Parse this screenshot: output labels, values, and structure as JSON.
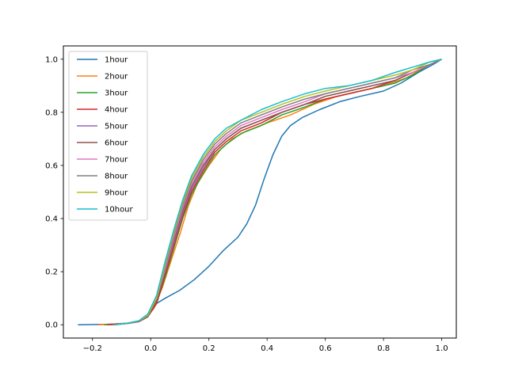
{
  "chart_data": {
    "type": "line",
    "title": "",
    "xlabel": "",
    "ylabel": "",
    "xlim": [
      -0.3,
      1.05
    ],
    "ylim": [
      -0.05,
      1.05
    ],
    "xticks": [
      -0.2,
      0.0,
      0.2,
      0.4,
      0.6,
      0.8,
      1.0
    ],
    "yticks": [
      0.0,
      0.2,
      0.4,
      0.6,
      0.8,
      1.0
    ],
    "xtick_labels": [
      "−0.2",
      "0.0",
      "0.2",
      "0.4",
      "0.6",
      "0.8",
      "1.0"
    ],
    "ytick_labels": [
      "0.0",
      "0.2",
      "0.4",
      "0.6",
      "0.8",
      "1.0"
    ],
    "grid": false,
    "legend_position": "upper-left",
    "series": [
      {
        "name": "1hour",
        "color": "#1f77b4",
        "points": [
          [
            -0.25,
            0.0
          ],
          [
            -0.15,
            0.002
          ],
          [
            -0.08,
            0.006
          ],
          [
            -0.04,
            0.015
          ],
          [
            -0.01,
            0.04
          ],
          [
            0.02,
            0.08
          ],
          [
            0.05,
            0.1
          ],
          [
            0.1,
            0.13
          ],
          [
            0.15,
            0.17
          ],
          [
            0.2,
            0.22
          ],
          [
            0.25,
            0.28
          ],
          [
            0.3,
            0.33
          ],
          [
            0.33,
            0.38
          ],
          [
            0.36,
            0.45
          ],
          [
            0.39,
            0.55
          ],
          [
            0.42,
            0.64
          ],
          [
            0.45,
            0.71
          ],
          [
            0.48,
            0.75
          ],
          [
            0.52,
            0.78
          ],
          [
            0.58,
            0.81
          ],
          [
            0.65,
            0.84
          ],
          [
            0.72,
            0.86
          ],
          [
            0.8,
            0.88
          ],
          [
            0.86,
            0.91
          ],
          [
            0.92,
            0.95
          ],
          [
            0.97,
            0.98
          ],
          [
            1.0,
            1.0
          ]
        ]
      },
      {
        "name": "2hour",
        "color": "#ff7f0e",
        "points": [
          [
            -0.18,
            0.0
          ],
          [
            -0.1,
            0.004
          ],
          [
            -0.05,
            0.01
          ],
          [
            -0.02,
            0.025
          ],
          [
            0.01,
            0.06
          ],
          [
            0.04,
            0.14
          ],
          [
            0.07,
            0.24
          ],
          [
            0.1,
            0.34
          ],
          [
            0.13,
            0.45
          ],
          [
            0.16,
            0.53
          ],
          [
            0.2,
            0.6
          ],
          [
            0.24,
            0.66
          ],
          [
            0.28,
            0.7
          ],
          [
            0.33,
            0.73
          ],
          [
            0.4,
            0.76
          ],
          [
            0.48,
            0.79
          ],
          [
            0.56,
            0.83
          ],
          [
            0.64,
            0.86
          ],
          [
            0.72,
            0.88
          ],
          [
            0.8,
            0.9
          ],
          [
            0.88,
            0.93
          ],
          [
            0.94,
            0.97
          ],
          [
            1.0,
            1.0
          ]
        ]
      },
      {
        "name": "3hour",
        "color": "#2ca02c",
        "points": [
          [
            -0.16,
            0.0
          ],
          [
            -0.08,
            0.005
          ],
          [
            -0.04,
            0.012
          ],
          [
            -0.01,
            0.03
          ],
          [
            0.02,
            0.08
          ],
          [
            0.05,
            0.18
          ],
          [
            0.08,
            0.29
          ],
          [
            0.11,
            0.4
          ],
          [
            0.14,
            0.49
          ],
          [
            0.18,
            0.57
          ],
          [
            0.22,
            0.64
          ],
          [
            0.26,
            0.68
          ],
          [
            0.31,
            0.72
          ],
          [
            0.38,
            0.75
          ],
          [
            0.45,
            0.79
          ],
          [
            0.53,
            0.82
          ],
          [
            0.6,
            0.85
          ],
          [
            0.68,
            0.87
          ],
          [
            0.76,
            0.89
          ],
          [
            0.84,
            0.91
          ],
          [
            0.9,
            0.94
          ],
          [
            0.96,
            0.98
          ],
          [
            1.0,
            1.0
          ]
        ]
      },
      {
        "name": "4hour",
        "color": "#d62728",
        "points": [
          [
            -0.15,
            0.0
          ],
          [
            -0.08,
            0.005
          ],
          [
            -0.04,
            0.012
          ],
          [
            -0.01,
            0.03
          ],
          [
            0.02,
            0.08
          ],
          [
            0.05,
            0.19
          ],
          [
            0.08,
            0.3
          ],
          [
            0.11,
            0.41
          ],
          [
            0.14,
            0.5
          ],
          [
            0.18,
            0.58
          ],
          [
            0.22,
            0.65
          ],
          [
            0.26,
            0.69
          ],
          [
            0.31,
            0.73
          ],
          [
            0.38,
            0.76
          ],
          [
            0.45,
            0.8
          ],
          [
            0.53,
            0.83
          ],
          [
            0.6,
            0.85
          ],
          [
            0.68,
            0.87
          ],
          [
            0.76,
            0.89
          ],
          [
            0.84,
            0.92
          ],
          [
            0.9,
            0.95
          ],
          [
            0.96,
            0.98
          ],
          [
            1.0,
            1.0
          ]
        ]
      },
      {
        "name": "5hour",
        "color": "#9467bd",
        "points": [
          [
            -0.14,
            0.0
          ],
          [
            -0.08,
            0.005
          ],
          [
            -0.04,
            0.013
          ],
          [
            -0.01,
            0.03
          ],
          [
            0.02,
            0.09
          ],
          [
            0.05,
            0.2
          ],
          [
            0.08,
            0.31
          ],
          [
            0.11,
            0.42
          ],
          [
            0.14,
            0.51
          ],
          [
            0.18,
            0.59
          ],
          [
            0.22,
            0.66
          ],
          [
            0.26,
            0.7
          ],
          [
            0.31,
            0.74
          ],
          [
            0.38,
            0.77
          ],
          [
            0.45,
            0.8
          ],
          [
            0.53,
            0.83
          ],
          [
            0.6,
            0.86
          ],
          [
            0.68,
            0.88
          ],
          [
            0.76,
            0.9
          ],
          [
            0.84,
            0.92
          ],
          [
            0.9,
            0.95
          ],
          [
            0.96,
            0.98
          ],
          [
            1.0,
            1.0
          ]
        ]
      },
      {
        "name": "6hour",
        "color": "#8c564b",
        "points": [
          [
            -0.14,
            0.0
          ],
          [
            -0.08,
            0.005
          ],
          [
            -0.04,
            0.013
          ],
          [
            -0.01,
            0.03
          ],
          [
            0.02,
            0.09
          ],
          [
            0.05,
            0.2
          ],
          [
            0.08,
            0.32
          ],
          [
            0.11,
            0.43
          ],
          [
            0.14,
            0.52
          ],
          [
            0.18,
            0.6
          ],
          [
            0.22,
            0.66
          ],
          [
            0.26,
            0.7
          ],
          [
            0.31,
            0.74
          ],
          [
            0.38,
            0.77
          ],
          [
            0.45,
            0.8
          ],
          [
            0.53,
            0.83
          ],
          [
            0.6,
            0.86
          ],
          [
            0.68,
            0.88
          ],
          [
            0.76,
            0.9
          ],
          [
            0.84,
            0.92
          ],
          [
            0.9,
            0.95
          ],
          [
            0.96,
            0.98
          ],
          [
            1.0,
            1.0
          ]
        ]
      },
      {
        "name": "7hour",
        "color": "#e377c2",
        "points": [
          [
            -0.13,
            0.0
          ],
          [
            -0.08,
            0.005
          ],
          [
            -0.04,
            0.014
          ],
          [
            -0.01,
            0.035
          ],
          [
            0.02,
            0.1
          ],
          [
            0.05,
            0.21
          ],
          [
            0.08,
            0.33
          ],
          [
            0.11,
            0.44
          ],
          [
            0.14,
            0.53
          ],
          [
            0.18,
            0.61
          ],
          [
            0.22,
            0.67
          ],
          [
            0.26,
            0.71
          ],
          [
            0.31,
            0.75
          ],
          [
            0.38,
            0.78
          ],
          [
            0.45,
            0.81
          ],
          [
            0.53,
            0.84
          ],
          [
            0.6,
            0.87
          ],
          [
            0.68,
            0.89
          ],
          [
            0.76,
            0.91
          ],
          [
            0.84,
            0.93
          ],
          [
            0.9,
            0.95
          ],
          [
            0.96,
            0.98
          ],
          [
            1.0,
            1.0
          ]
        ]
      },
      {
        "name": "8hour",
        "color": "#7f7f7f",
        "points": [
          [
            -0.13,
            0.0
          ],
          [
            -0.08,
            0.005
          ],
          [
            -0.04,
            0.014
          ],
          [
            -0.01,
            0.035
          ],
          [
            0.02,
            0.1
          ],
          [
            0.05,
            0.22
          ],
          [
            0.08,
            0.34
          ],
          [
            0.11,
            0.45
          ],
          [
            0.14,
            0.54
          ],
          [
            0.18,
            0.62
          ],
          [
            0.22,
            0.68
          ],
          [
            0.26,
            0.72
          ],
          [
            0.31,
            0.76
          ],
          [
            0.38,
            0.79
          ],
          [
            0.45,
            0.82
          ],
          [
            0.53,
            0.85
          ],
          [
            0.6,
            0.87
          ],
          [
            0.68,
            0.89
          ],
          [
            0.76,
            0.91
          ],
          [
            0.84,
            0.93
          ],
          [
            0.9,
            0.96
          ],
          [
            0.96,
            0.98
          ],
          [
            1.0,
            1.0
          ]
        ]
      },
      {
        "name": "9hour",
        "color": "#bcbd22",
        "points": [
          [
            -0.12,
            0.0
          ],
          [
            -0.08,
            0.006
          ],
          [
            -0.04,
            0.015
          ],
          [
            -0.01,
            0.035
          ],
          [
            0.02,
            0.1
          ],
          [
            0.05,
            0.23
          ],
          [
            0.08,
            0.35
          ],
          [
            0.11,
            0.46
          ],
          [
            0.14,
            0.55
          ],
          [
            0.18,
            0.63
          ],
          [
            0.22,
            0.69
          ],
          [
            0.26,
            0.73
          ],
          [
            0.31,
            0.77
          ],
          [
            0.38,
            0.8
          ],
          [
            0.45,
            0.83
          ],
          [
            0.53,
            0.86
          ],
          [
            0.6,
            0.88
          ],
          [
            0.68,
            0.9
          ],
          [
            0.76,
            0.92
          ],
          [
            0.84,
            0.94
          ],
          [
            0.9,
            0.96
          ],
          [
            0.96,
            0.99
          ],
          [
            1.0,
            1.0
          ]
        ]
      },
      {
        "name": "10hour",
        "color": "#17becf",
        "points": [
          [
            -0.12,
            0.0
          ],
          [
            -0.08,
            0.006
          ],
          [
            -0.04,
            0.015
          ],
          [
            -0.01,
            0.04
          ],
          [
            0.02,
            0.11
          ],
          [
            0.05,
            0.24
          ],
          [
            0.08,
            0.36
          ],
          [
            0.11,
            0.47
          ],
          [
            0.14,
            0.56
          ],
          [
            0.18,
            0.64
          ],
          [
            0.22,
            0.7
          ],
          [
            0.26,
            0.74
          ],
          [
            0.31,
            0.77
          ],
          [
            0.38,
            0.81
          ],
          [
            0.45,
            0.84
          ],
          [
            0.53,
            0.87
          ],
          [
            0.6,
            0.89
          ],
          [
            0.68,
            0.9
          ],
          [
            0.76,
            0.92
          ],
          [
            0.84,
            0.95
          ],
          [
            0.9,
            0.97
          ],
          [
            0.96,
            0.99
          ],
          [
            1.0,
            1.0
          ]
        ]
      }
    ]
  }
}
